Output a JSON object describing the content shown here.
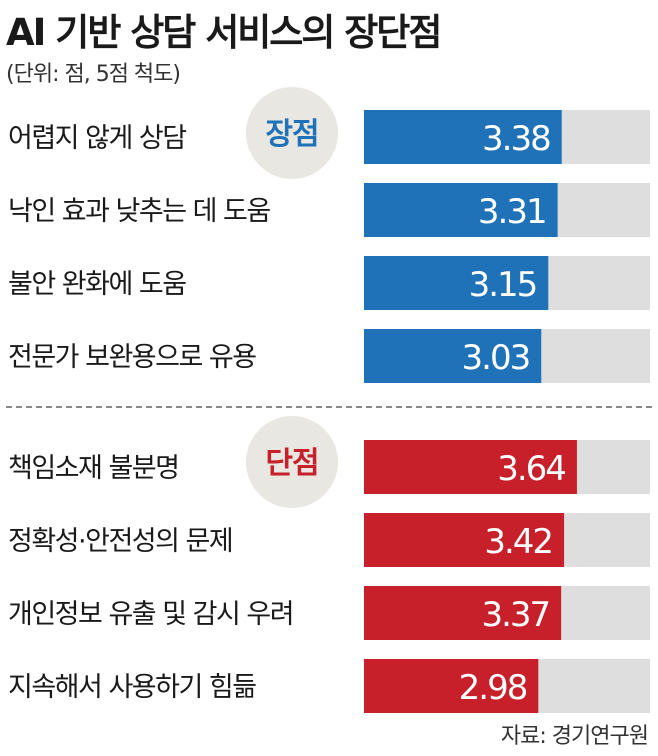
{
  "title": "AI 기반 상담 서비스의 장단점",
  "subtitle": "(단위: 점, 5점 척도)",
  "source": "자료: 경기연구원",
  "colors": {
    "pros": "#1f72b8",
    "cons": "#c8202a",
    "track": "#dedede",
    "badge_bg": "#e8e7e2",
    "divider": "#888888"
  },
  "chart_data": [
    {
      "type": "bar",
      "orientation": "horizontal",
      "group_label": "장점",
      "color": "#1f72b8",
      "categories": [
        "어렵지 않게 상담",
        "낙인 효과 낮추는 데 도움",
        "불안 완화에 도움",
        "전문가 보완용으로 유용"
      ],
      "values": [
        3.38,
        3.31,
        3.15,
        3.03
      ],
      "value_labels": [
        "3.38",
        "3.31",
        "3.15",
        "3.03"
      ],
      "xlim": [
        0,
        5
      ]
    },
    {
      "type": "bar",
      "orientation": "horizontal",
      "group_label": "단점",
      "color": "#c8202a",
      "categories": [
        "책임소재 불분명",
        "정확성·안전성의 문제",
        "개인정보 유출 및 감시 우려",
        "지속해서 사용하기 힘듦"
      ],
      "values": [
        3.64,
        3.42,
        3.37,
        2.98
      ],
      "value_labels": [
        "3.64",
        "3.42",
        "3.37",
        "2.98"
      ],
      "xlim": [
        0,
        5
      ]
    }
  ]
}
